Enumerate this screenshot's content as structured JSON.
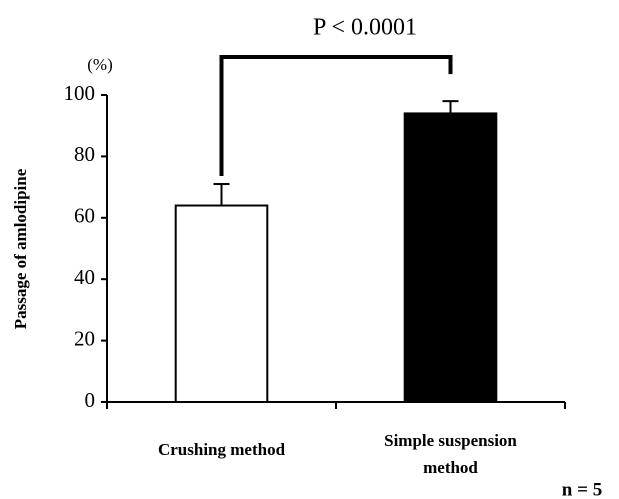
{
  "chart_data": {
    "type": "bar",
    "title": "P < 0.0001",
    "y_label": "Passage of amlodipine",
    "y_unit": "(%)",
    "note": "n = 5",
    "categories": [
      "Crushing method",
      "Simple suspension method"
    ],
    "values": [
      64,
      94
    ],
    "errors": [
      7,
      4
    ],
    "colors": [
      "#ffffff",
      "#000000"
    ],
    "ylim": [
      0,
      100
    ],
    "yticks": [
      0,
      20,
      40,
      60,
      80,
      100
    ],
    "grid": false
  }
}
